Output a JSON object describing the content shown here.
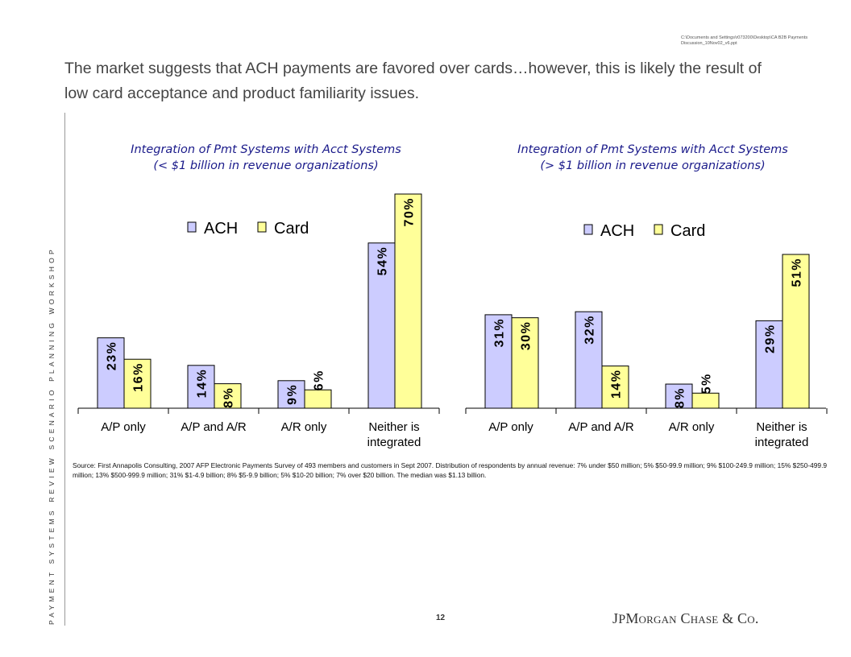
{
  "file_path": "C:\\Documents and Settings\\r073200\\Desktop\\CA B2B Payments Discussion_10Nov02_v6.ppt",
  "headline": "The market suggests that ACH payments are favored over cards…however, this is likely the result of low card acceptance and product familiarity issues.",
  "side_label": "PAYMENT SYSTEMS REVIEW SCENARIO PLANNING WORKSHOP",
  "source": "Source:  First Annapolis Consulting,  2007 AFP Electronic Payments Survey of 493 members and customers in Sept 2007.  Distribution of respondents by annual revenue: 7% under $50 million; 5% $50-99.9 million; 9% $100-249.9 million; 15% $250-499.9 million; 13% $500-999.9 million; 31% $1-4.9 billion; 8% $5-9.9 billion; 5% $10-20 billion; 7% over $20 billion.  The median was $1.13 billion.",
  "page_number": "12",
  "logo": "JPMorgan Chase & Co.",
  "colors": {
    "ach": "#ccccff",
    "card": "#ffff99",
    "title": "#1a1a8a"
  },
  "chart_data": [
    {
      "type": "bar",
      "title_line1": "Integration of Pmt Systems with Acct Systems",
      "title_line2": "(< $1 billion in revenue organizations)",
      "categories": [
        [
          "A/P only"
        ],
        [
          "A/P and A/R"
        ],
        [
          "A/R only"
        ],
        [
          "Neither is",
          "integrated"
        ]
      ],
      "series": [
        {
          "name": "ACH",
          "values": [
            23,
            14,
            9,
            54
          ]
        },
        {
          "name": "Card",
          "values": [
            16,
            8,
            6,
            70
          ]
        }
      ],
      "ylim": [
        0,
        70
      ],
      "legend": "top-left"
    },
    {
      "type": "bar",
      "title_line1": "Integration of Pmt Systems with Acct Systems",
      "title_line2": "(> $1 billion in revenue organizations)",
      "categories": [
        [
          "A/P only"
        ],
        [
          "A/P and A/R"
        ],
        [
          "A/R only"
        ],
        [
          "Neither is",
          "integrated"
        ]
      ],
      "series": [
        {
          "name": "ACH",
          "values": [
            31,
            32,
            8,
            29
          ]
        },
        {
          "name": "Card",
          "values": [
            30,
            14,
            5,
            51
          ]
        }
      ],
      "ylim": [
        0,
        51
      ],
      "legend": "top-left"
    }
  ]
}
